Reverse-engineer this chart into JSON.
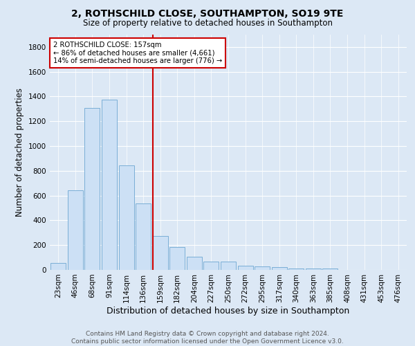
{
  "title": "2, ROTHSCHILD CLOSE, SOUTHAMPTON, SO19 9TE",
  "subtitle": "Size of property relative to detached houses in Southampton",
  "xlabel": "Distribution of detached houses by size in Southampton",
  "ylabel": "Number of detached properties",
  "footnote1": "Contains HM Land Registry data © Crown copyright and database right 2024.",
  "footnote2": "Contains public sector information licensed under the Open Government Licence v3.0.",
  "categories": [
    "23sqm",
    "46sqm",
    "68sqm",
    "91sqm",
    "114sqm",
    "136sqm",
    "159sqm",
    "182sqm",
    "204sqm",
    "227sqm",
    "250sqm",
    "272sqm",
    "295sqm",
    "317sqm",
    "340sqm",
    "363sqm",
    "385sqm",
    "408sqm",
    "431sqm",
    "453sqm",
    "476sqm"
  ],
  "values": [
    55,
    645,
    1310,
    1375,
    845,
    535,
    275,
    185,
    105,
    65,
    65,
    35,
    30,
    20,
    10,
    10,
    10,
    0,
    0,
    0,
    0
  ],
  "bar_color": "#cce0f5",
  "bar_edge_color": "#7aaed6",
  "vline_index": 6,
  "vline_color": "#cc0000",
  "annotation_line1": "2 ROTHSCHILD CLOSE: 157sqm",
  "annotation_line2": "← 86% of detached houses are smaller (4,661)",
  "annotation_line3": "14% of semi-detached houses are larger (776) →",
  "annotation_box_color": "#ffffff",
  "annotation_box_edge": "#cc0000",
  "bg_color": "#dce8f5",
  "plot_bg_color": "#dce8f5",
  "ylim": [
    0,
    1900
  ],
  "yticks": [
    0,
    200,
    400,
    600,
    800,
    1000,
    1200,
    1400,
    1600,
    1800
  ],
  "title_fontsize": 10,
  "subtitle_fontsize": 8.5,
  "xlabel_fontsize": 9,
  "ylabel_fontsize": 8.5,
  "tick_fontsize": 7.5,
  "footnote_fontsize": 6.5
}
